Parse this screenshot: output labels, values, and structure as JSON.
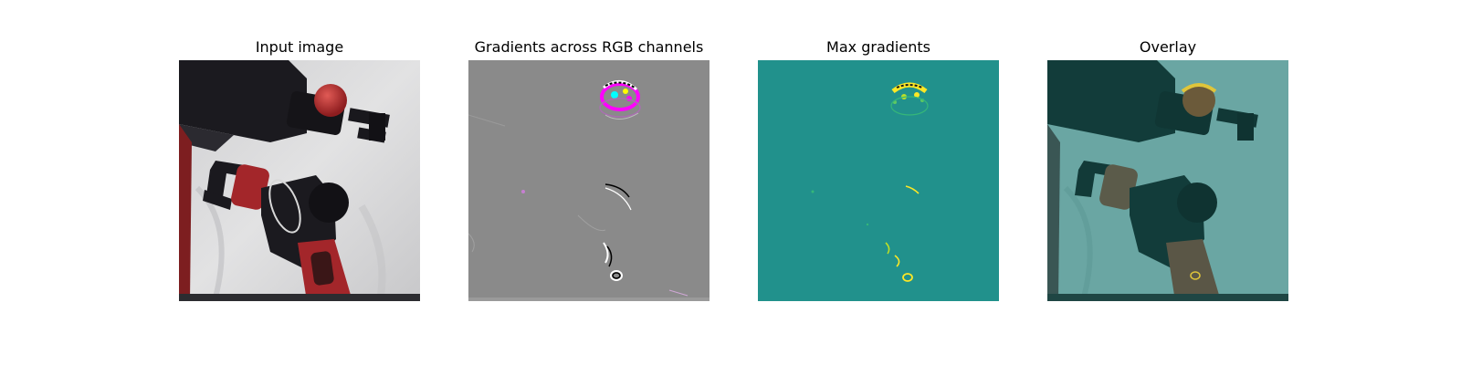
{
  "figure": {
    "panels": [
      {
        "title": "Input image"
      },
      {
        "title": "Gradients across RGB channels"
      },
      {
        "title": "Max gradients"
      },
      {
        "title": "Overlay"
      }
    ]
  },
  "colors": {
    "gradient_gray": "#8a8a8a",
    "max_gradient_teal": "#21918c",
    "max_gradient_yellow": "#fde725",
    "overlay_tint": "#1f7f7a",
    "robot_red": "#a3262a",
    "robot_black": "#1b1a1f",
    "background_wall": "#d6d6d6"
  }
}
